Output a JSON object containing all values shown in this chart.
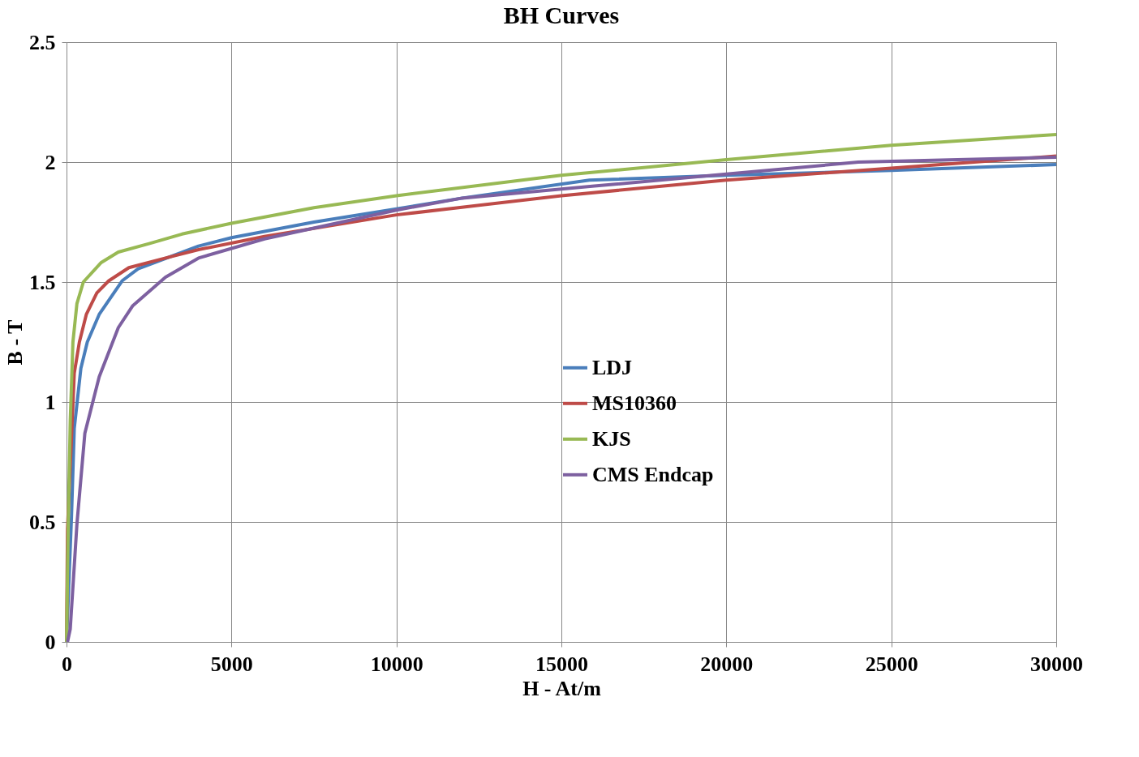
{
  "chart_data": {
    "type": "line",
    "title": "BH Curves",
    "xlabel": "H - At/m",
    "ylabel": "B - T",
    "xlim": [
      0,
      30000
    ],
    "xticks": [
      0,
      5000,
      10000,
      15000,
      20000,
      25000,
      30000
    ],
    "ylim": [
      0,
      2.5
    ],
    "yticks": [
      0,
      0.5,
      1,
      1.5,
      2,
      2.5
    ],
    "grid": true,
    "legend": "center",
    "marker": "none",
    "line_style": "solid",
    "series": [
      {
        "name": "LDJ",
        "color": "#4a7ebb",
        "x": [
          0,
          150,
          235,
          435,
          630,
          990,
          1685,
          2170,
          4000,
          5000,
          7500,
          10000,
          12000,
          15850,
          20000,
          25000,
          30000
        ],
        "values": [
          0,
          0.52,
          0.89,
          1.14,
          1.25,
          1.365,
          1.505,
          1.555,
          1.65,
          1.685,
          1.75,
          1.805,
          1.85,
          1.925,
          1.945,
          1.965,
          1.99
        ]
      },
      {
        "name": "MS10360",
        "color": "#be4b48",
        "x": [
          0,
          30,
          235,
          390,
          600,
          920,
          1280,
          1890,
          3000,
          4000,
          6000,
          10000,
          15000,
          20000,
          25000,
          30000
        ],
        "values": [
          0,
          0.47,
          1.12,
          1.25,
          1.365,
          1.455,
          1.505,
          1.56,
          1.6,
          1.635,
          1.69,
          1.78,
          1.86,
          1.925,
          1.975,
          2.025
        ]
      },
      {
        "name": "KJS",
        "color": "#98b954",
        "x": [
          0,
          50,
          113,
          194,
          315,
          510,
          1040,
          1570,
          2500,
          3500,
          5000,
          7500,
          10000,
          15000,
          20000,
          25000,
          30000
        ],
        "values": [
          0,
          0.47,
          0.92,
          1.25,
          1.41,
          1.5,
          1.58,
          1.625,
          1.66,
          1.7,
          1.745,
          1.81,
          1.86,
          1.945,
          2.01,
          2.07,
          2.115
        ]
      },
      {
        "name": "CMS Endcap",
        "color": "#7d60a0",
        "x": [
          30,
          113,
          315,
          556,
          990,
          1570,
          2000,
          3000,
          4000,
          6000,
          8000,
          10000,
          12000,
          16000,
          20000,
          24000,
          30000
        ],
        "values": [
          0,
          0.054,
          0.49,
          0.87,
          1.105,
          1.31,
          1.4,
          1.52,
          1.6,
          1.68,
          1.74,
          1.8,
          1.85,
          1.9,
          1.95,
          2.0,
          2.02
        ]
      }
    ]
  }
}
